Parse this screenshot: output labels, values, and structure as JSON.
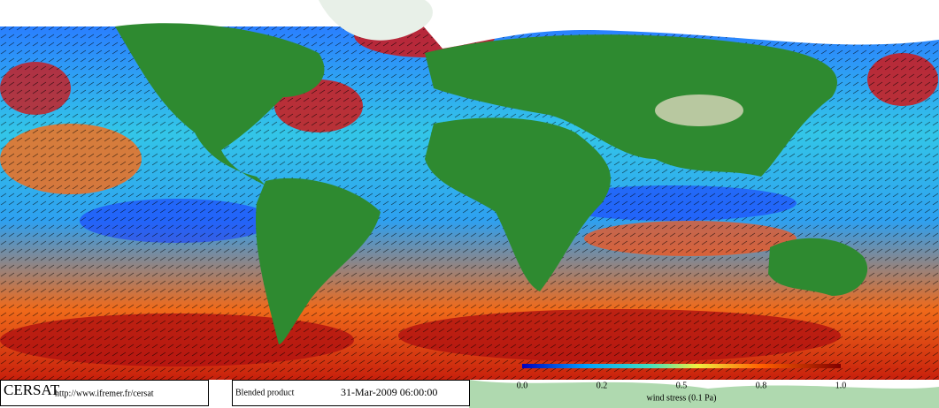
{
  "footer": {
    "logo": "CERSAT",
    "url": "http://www.ifremer.fr/cersat",
    "product": "Blended product",
    "date": "31-Mar-2009 06:00:00"
  },
  "colorbar": {
    "labels": [
      "0.0",
      "0.2",
      "0.5",
      "0.8",
      "1.0"
    ],
    "title": "wind stress (0.1 Pa)"
  }
}
